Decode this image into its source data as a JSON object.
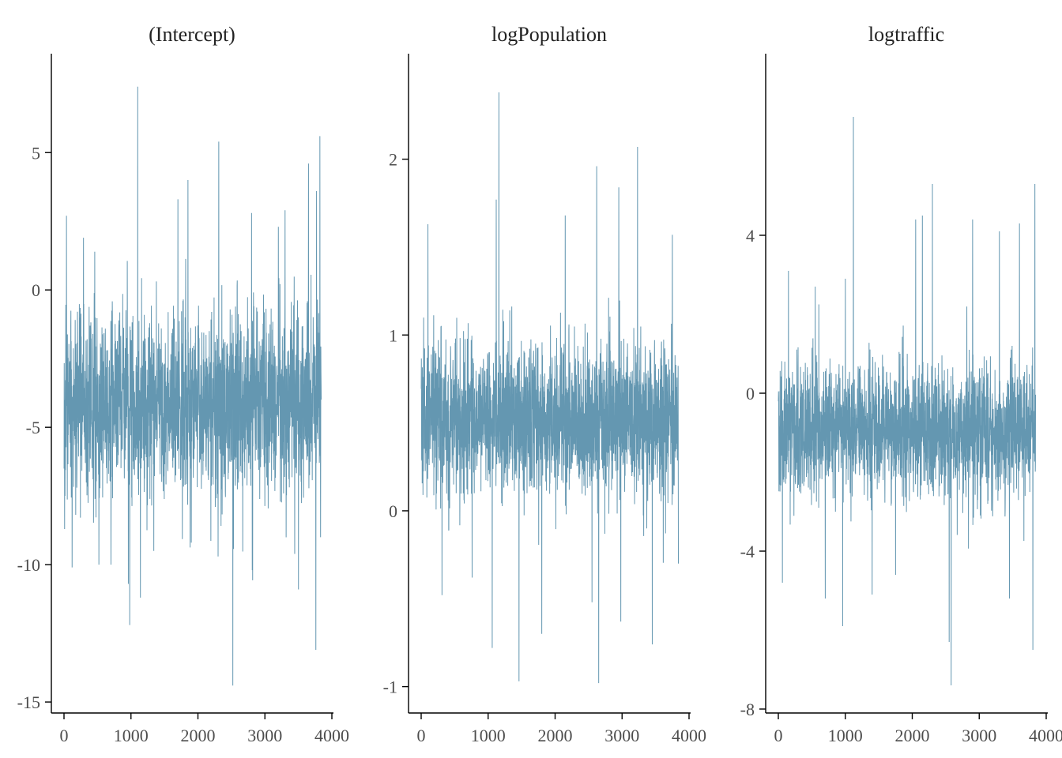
{
  "figure": {
    "background": "#ffffff",
    "trace_color": "#6497b1",
    "axis_color": "#000000",
    "tick_label_color": "#4d4d4d"
  },
  "chart_data": [
    {
      "type": "line",
      "title": "(Intercept)",
      "xlabel": "",
      "ylabel": "",
      "x_range": [
        1,
        3840
      ],
      "xlim": [
        -100,
        4000
      ],
      "ylim": [
        -15.4,
        8.6
      ],
      "xticks": [
        0,
        1000,
        2000,
        3000,
        4000
      ],
      "yticks": [
        -15,
        -10,
        -5,
        0,
        5
      ],
      "grid": false,
      "series": [
        {
          "center": -4.1,
          "core_half_width": 3.2,
          "spikes": [
            [
              35,
              2.7
            ],
            [
              120,
              -10.1
            ],
            [
              290,
              1.9
            ],
            [
              520,
              -10.0
            ],
            [
              700,
              -10.0
            ],
            [
              960,
              -10.7
            ],
            [
              980,
              -12.2
            ],
            [
              1100,
              7.4
            ],
            [
              1140,
              -11.2
            ],
            [
              1340,
              -9.5
            ],
            [
              1700,
              3.3
            ],
            [
              1850,
              4.0
            ],
            [
              1900,
              -9.2
            ],
            [
              2300,
              -9.7
            ],
            [
              2310,
              5.4
            ],
            [
              2520,
              -14.4
            ],
            [
              2800,
              2.8
            ],
            [
              2810,
              -10.2
            ],
            [
              3200,
              2.3
            ],
            [
              3300,
              2.9
            ],
            [
              3500,
              -10.9
            ],
            [
              3650,
              4.6
            ],
            [
              3760,
              -13.1
            ],
            [
              3770,
              3.6
            ],
            [
              3820,
              5.6
            ],
            [
              3830,
              -9.0
            ]
          ]
        }
      ]
    },
    {
      "type": "line",
      "title": "logPopulation",
      "xlabel": "",
      "ylabel": "",
      "x_range": [
        1,
        3840
      ],
      "xlim": [
        -100,
        4000
      ],
      "ylim": [
        -1.15,
        2.6
      ],
      "xticks": [
        0,
        1000,
        2000,
        3000,
        4000
      ],
      "yticks": [
        -1,
        0,
        1,
        2
      ],
      "grid": false,
      "series": [
        {
          "center": 0.52,
          "core_half_width": 0.42,
          "spikes": [
            [
              100,
              1.63
            ],
            [
              310,
              -0.48
            ],
            [
              760,
              -0.38
            ],
            [
              1060,
              -0.78
            ],
            [
              1120,
              1.77
            ],
            [
              1160,
              2.38
            ],
            [
              1460,
              -0.97
            ],
            [
              1800,
              -0.7
            ],
            [
              2150,
              1.68
            ],
            [
              2550,
              -0.52
            ],
            [
              2620,
              1.96
            ],
            [
              2650,
              -0.98
            ],
            [
              2950,
              1.84
            ],
            [
              2980,
              -0.63
            ],
            [
              3230,
              2.07
            ],
            [
              3450,
              -0.76
            ],
            [
              3750,
              1.57
            ],
            [
              3840,
              -0.3
            ]
          ]
        }
      ]
    },
    {
      "type": "line",
      "title": "logtraffic",
      "xlabel": "",
      "ylabel": "",
      "x_range": [
        1,
        3840
      ],
      "xlim": [
        -100,
        4000
      ],
      "ylim": [
        -8.1,
        8.6
      ],
      "xticks": [
        0,
        1000,
        2000,
        3000,
        4000
      ],
      "yticks": [
        -8,
        -4,
        0,
        4
      ],
      "grid": false,
      "series": [
        {
          "center": -0.95,
          "core_half_width": 1.6,
          "spikes": [
            [
              60,
              -4.8
            ],
            [
              150,
              3.1
            ],
            [
              550,
              2.7
            ],
            [
              700,
              -5.2
            ],
            [
              960,
              -5.9
            ],
            [
              1000,
              2.9
            ],
            [
              1120,
              7.0
            ],
            [
              1400,
              -5.1
            ],
            [
              1750,
              -4.6
            ],
            [
              2050,
              4.4
            ],
            [
              2150,
              4.5
            ],
            [
              2300,
              5.3
            ],
            [
              2550,
              -6.3
            ],
            [
              2580,
              -7.4
            ],
            [
              2900,
              4.4
            ],
            [
              3300,
              4.1
            ],
            [
              3450,
              -5.2
            ],
            [
              3600,
              4.3
            ],
            [
              3800,
              -6.5
            ],
            [
              3830,
              5.3
            ]
          ]
        }
      ]
    }
  ]
}
